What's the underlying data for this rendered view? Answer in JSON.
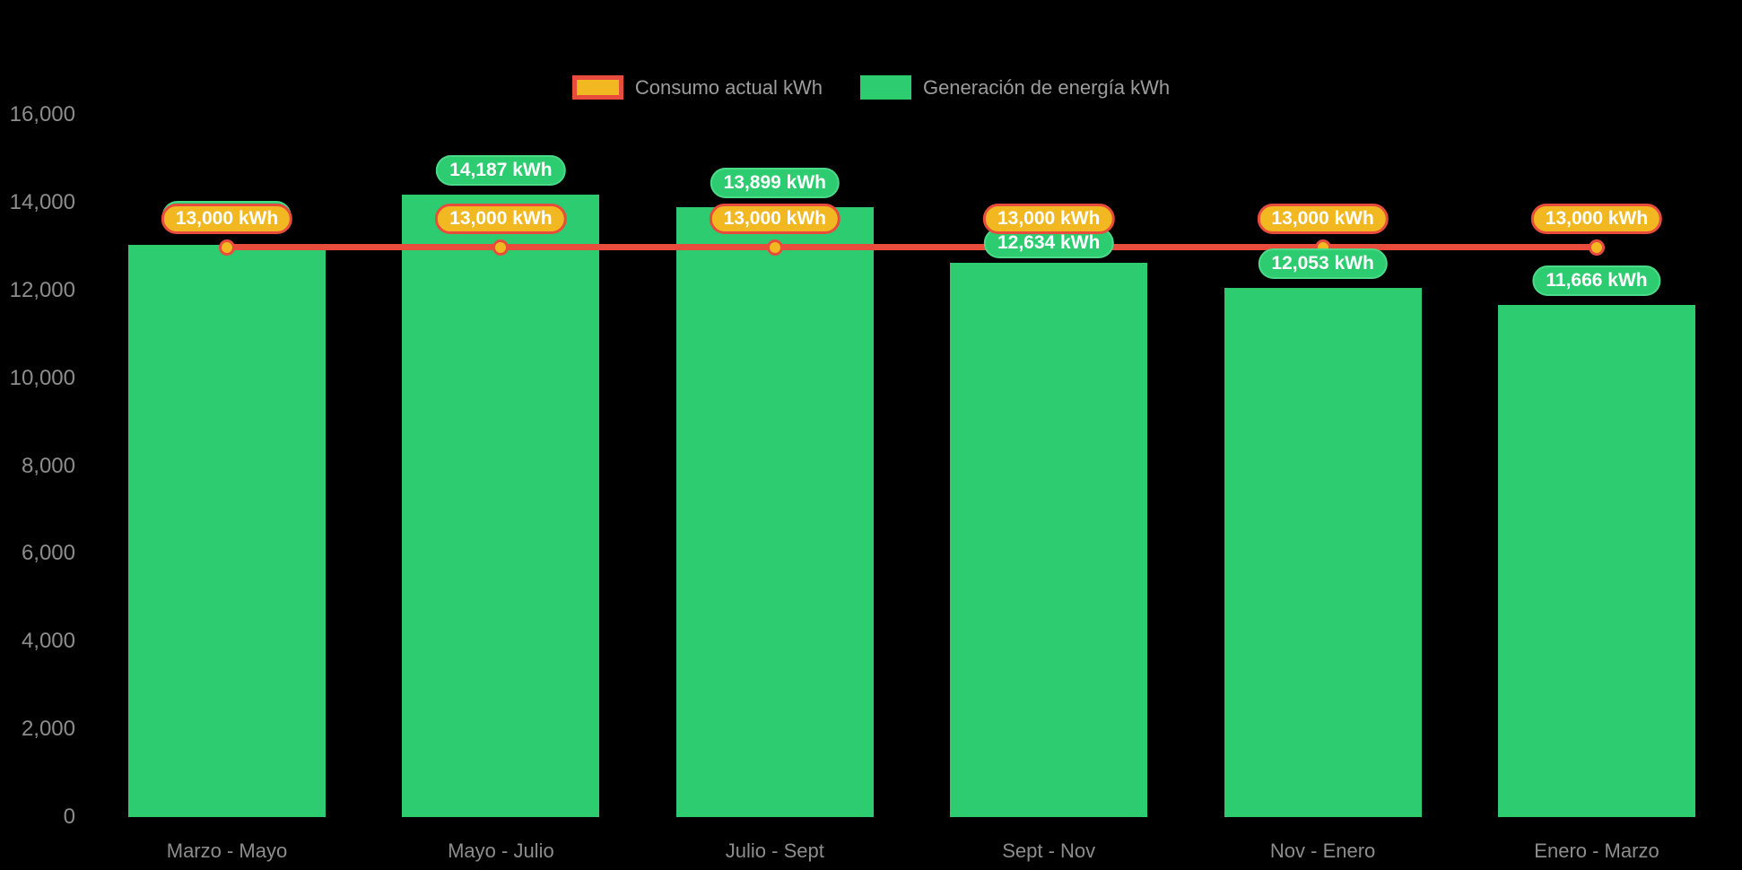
{
  "legend": {
    "items": [
      {
        "label": "Consumo actual kWh",
        "swatch": "yellow-box-red-border",
        "color": "#F2B822",
        "border_color": "#E74C3C"
      },
      {
        "label": "Generación de energía kWh",
        "swatch": "green-box",
        "color": "#2ECC71"
      }
    ]
  },
  "chart_data": {
    "type": "bar",
    "title": "",
    "xlabel": "",
    "ylabel": "",
    "categories": [
      "Marzo - Mayo",
      "Mayo - Julio",
      "Julio - Sept",
      "Sept - Nov",
      "Nov - Enero",
      "Enero - Marzo"
    ],
    "series": [
      {
        "name": "Generación de energía kWh",
        "type": "bar",
        "color": "#2ECC71",
        "values": [
          13040,
          14187,
          13899,
          12634,
          12053,
          11666
        ],
        "labels": [
          "13,040 kWh",
          "14,187 kWh",
          "13,899 kWh",
          "12,634 kWh",
          "12,053 kWh",
          "11,666 kWh"
        ],
        "label_hidden": [
          true,
          false,
          false,
          false,
          false,
          false
        ],
        "label_dy": [
          -5,
          0,
          0,
          5,
          0,
          0
        ]
      },
      {
        "name": "Consumo actual kWh",
        "type": "line",
        "color": "#E74C3C",
        "point_fill": "#F2B822",
        "point_border": "#E74C3C",
        "values": [
          13000,
          13000,
          13000,
          13000,
          13000,
          13000
        ],
        "labels": [
          "13,000 kWh",
          "13,000 kWh",
          "13,000 kWh",
          "13,000 kWh",
          "13,000 kWh",
          "13,000 kWh"
        ]
      }
    ],
    "ylim": [
      0,
      16000
    ],
    "yticks": [
      {
        "value": 0,
        "label": "0"
      },
      {
        "value": 2000,
        "label": "2,000"
      },
      {
        "value": 4000,
        "label": "4,000"
      },
      {
        "value": 6000,
        "label": "6,000"
      },
      {
        "value": 8000,
        "label": "8,000"
      },
      {
        "value": 10000,
        "label": "10,000"
      },
      {
        "value": 12000,
        "label": "12,000"
      },
      {
        "value": 14000,
        "label": "14,000"
      },
      {
        "value": 16000,
        "label": "16,000"
      }
    ],
    "grid": false,
    "legend_position": "top",
    "background": "#000000"
  }
}
